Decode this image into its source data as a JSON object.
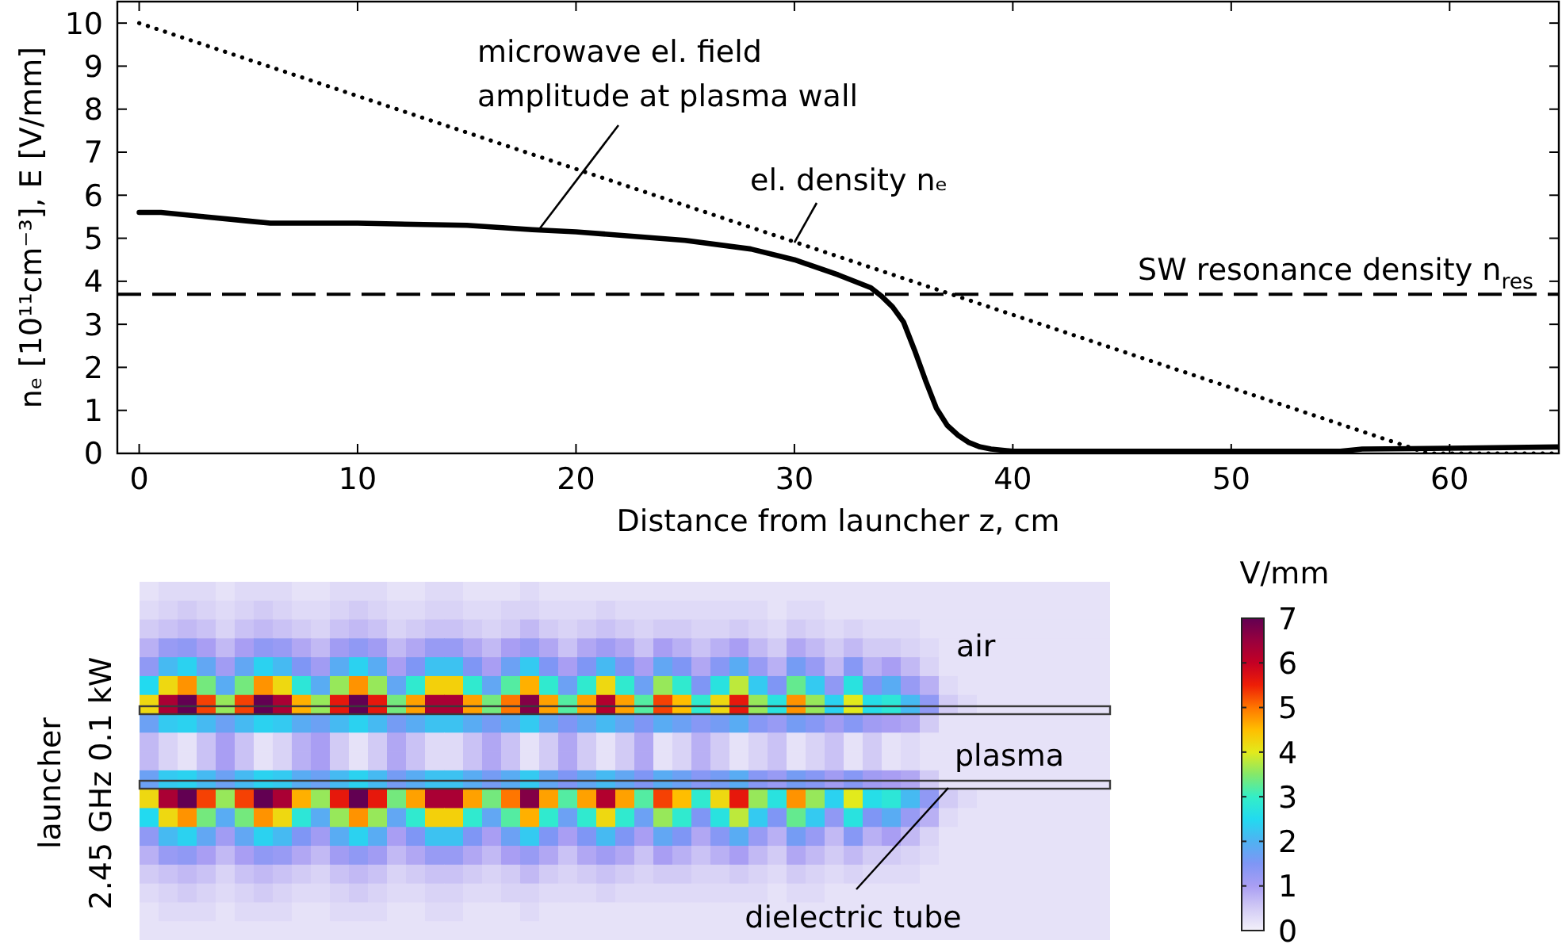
{
  "chart_data": [
    {
      "type": "line",
      "xlabel": "Distance from launcher z, cm",
      "ylabel": "nₑ [10¹¹cm⁻³], E [V/mm]",
      "xlim": [
        -1,
        65
      ],
      "ylim": [
        0,
        10.5
      ],
      "xticks": [
        0,
        10,
        20,
        30,
        40,
        50,
        60
      ],
      "yticks": [
        0,
        1,
        2,
        3,
        4,
        5,
        6,
        7,
        8,
        9,
        10
      ],
      "series": [
        {
          "color": "#000000",
          "line_style": "solid",
          "x": [
            0,
            1,
            3,
            5,
            6,
            10,
            15,
            18,
            20,
            25,
            28,
            30,
            32,
            33.5,
            34,
            34.5,
            35,
            35.5,
            36,
            36.5,
            37,
            37.5,
            38,
            38.5,
            39,
            40,
            45,
            50,
            55,
            56,
            60,
            65
          ],
          "values": [
            5.6,
            5.6,
            5.5,
            5.4,
            5.35,
            5.35,
            5.3,
            5.2,
            5.15,
            4.95,
            4.75,
            4.5,
            4.15,
            3.85,
            3.65,
            3.4,
            3.05,
            2.4,
            1.7,
            1.05,
            0.65,
            0.42,
            0.25,
            0.15,
            0.1,
            0.05,
            0.05,
            0.05,
            0.05,
            0.1,
            0.12,
            0.15
          ]
        },
        {
          "color": "#000000",
          "line_style": "dotted",
          "x": [
            0,
            59,
            65
          ],
          "values": [
            10,
            0,
            0
          ]
        }
      ],
      "ref_lines": [
        {
          "axis": "y",
          "value": 3.7,
          "label": "SW resonance density n$_{res}$",
          "color": "#000000",
          "line_style": "dashed"
        }
      ],
      "annotations": [
        {
          "text": "microwave el. field\namplitude at plasma wall",
          "x": 18.3,
          "y": 5.2
        },
        {
          "text": "el. density nₑ",
          "x": 30,
          "y": 4.9
        }
      ]
    },
    {
      "type": "heatmap",
      "clabel": "V/mm",
      "clim": [
        0,
        7
      ],
      "cticks": [
        0,
        1,
        2,
        3,
        4,
        5,
        6,
        7
      ],
      "categories": [
        null,
        null,
        null,
        null,
        null,
        null,
        null,
        null,
        null,
        null,
        null,
        null,
        null,
        null,
        null,
        null,
        null,
        null,
        null,
        null,
        null,
        null,
        null,
        null,
        null,
        null,
        null,
        null,
        null,
        null,
        null,
        null,
        null,
        null,
        null,
        null,
        null,
        null,
        null,
        null,
        null,
        null,
        null,
        null,
        null,
        null,
        null,
        null,
        null,
        null,
        null
      ],
      "y_categories": [
        null,
        null,
        null,
        null,
        null,
        null,
        null,
        null,
        null,
        null,
        null,
        null,
        null,
        null,
        null,
        null,
        null,
        null,
        null
      ],
      "cells": [
        [
          0.2,
          0.3,
          0.3,
          0.3,
          0.2,
          0.3,
          0.3,
          0.3,
          0.2,
          0.2,
          0.3,
          0.3,
          0.3,
          0.2,
          0.2,
          0.3,
          0.3,
          0.2,
          0.2,
          0.2,
          0.3,
          0.2,
          0.2,
          0.2,
          0.2,
          0.2,
          0.2,
          0.2,
          0.2,
          0.2,
          0.2,
          0.2,
          0.2,
          0.2,
          0.2,
          0.2,
          0.2,
          0.2,
          0.2,
          0.2,
          0.2,
          0.2,
          0.2,
          0.2,
          0.2,
          0.2,
          0.2,
          0.2,
          0.2,
          0.2,
          0.2
        ],
        [
          0.3,
          0.4,
          0.5,
          0.4,
          0.3,
          0.4,
          0.5,
          0.4,
          0.3,
          0.3,
          0.4,
          0.5,
          0.4,
          0.3,
          0.3,
          0.4,
          0.4,
          0.3,
          0.3,
          0.4,
          0.4,
          0.3,
          0.3,
          0.3,
          0.4,
          0.3,
          0.3,
          0.3,
          0.3,
          0.3,
          0.3,
          0.3,
          0.3,
          0.2,
          0.3,
          0.3,
          0.2,
          0.2,
          0.2,
          0.2,
          0.2,
          0.2,
          0.2,
          0.2,
          0.2,
          0.2,
          0.2,
          0.2,
          0.2,
          0.2,
          0.2
        ],
        [
          0.5,
          0.6,
          0.7,
          0.6,
          0.4,
          0.6,
          0.7,
          0.6,
          0.5,
          0.4,
          0.6,
          0.7,
          0.6,
          0.4,
          0.5,
          0.6,
          0.6,
          0.5,
          0.4,
          0.5,
          0.7,
          0.5,
          0.4,
          0.5,
          0.6,
          0.5,
          0.4,
          0.5,
          0.5,
          0.4,
          0.4,
          0.5,
          0.4,
          0.3,
          0.5,
          0.4,
          0.3,
          0.4,
          0.3,
          0.3,
          0.3,
          0.2,
          0.2,
          0.2,
          0.2,
          0.2,
          0.2,
          0.2,
          0.2,
          0.2,
          0.2
        ],
        [
          0.8,
          1.2,
          1.3,
          1.0,
          0.7,
          1.0,
          1.3,
          1.2,
          0.9,
          0.7,
          1.1,
          1.3,
          1.1,
          0.7,
          0.9,
          1.2,
          1.2,
          0.9,
          0.7,
          1.0,
          1.2,
          0.9,
          0.6,
          0.9,
          1.1,
          0.9,
          0.6,
          1.0,
          0.8,
          0.6,
          0.8,
          1.0,
          0.7,
          0.5,
          0.9,
          0.7,
          0.5,
          0.7,
          0.5,
          0.5,
          0.4,
          0.3,
          0.2,
          0.2,
          0.2,
          0.2,
          0.2,
          0.2,
          0.2,
          0.2,
          0.2
        ],
        [
          1.3,
          2.1,
          2.4,
          1.8,
          1.1,
          1.8,
          2.4,
          2.1,
          1.5,
          1.1,
          1.9,
          2.4,
          1.9,
          1.0,
          1.5,
          2.2,
          2.2,
          1.5,
          1.0,
          1.7,
          2.3,
          1.5,
          1.0,
          1.5,
          2.1,
          1.5,
          1.0,
          1.8,
          1.5,
          0.9,
          1.4,
          1.9,
          1.2,
          0.8,
          1.6,
          1.2,
          0.7,
          1.4,
          0.8,
          1.0,
          0.7,
          0.4,
          0.2,
          0.2,
          0.2,
          0.2,
          0.2,
          0.2,
          0.2,
          0.2,
          0.2
        ],
        [
          2.5,
          4.2,
          4.8,
          3.4,
          1.9,
          3.4,
          4.8,
          4.2,
          2.8,
          1.9,
          3.6,
          4.8,
          3.6,
          1.8,
          2.9,
          4.3,
          4.3,
          2.9,
          1.8,
          3.2,
          4.6,
          2.9,
          1.7,
          2.9,
          4.2,
          2.9,
          1.7,
          3.6,
          2.9,
          1.5,
          2.7,
          3.8,
          2.3,
          1.5,
          3.3,
          2.3,
          1.3,
          2.7,
          1.5,
          1.9,
          1.2,
          0.8,
          0.3,
          0.2,
          0.2,
          0.2,
          0.2,
          0.2,
          0.2,
          0.2,
          0.2
        ],
        [
          4.2,
          6.3,
          7.0,
          5.3,
          3.6,
          5.3,
          7.0,
          6.3,
          4.6,
          3.6,
          5.6,
          7.0,
          5.6,
          3.4,
          4.7,
          6.3,
          6.3,
          4.7,
          3.4,
          5.0,
          6.7,
          4.7,
          3.2,
          4.7,
          6.2,
          4.7,
          3.2,
          5.3,
          4.5,
          2.9,
          4.2,
          5.6,
          3.6,
          2.7,
          4.8,
          3.6,
          2.4,
          4.0,
          2.6,
          2.8,
          2.1,
          1.3,
          0.5,
          0.3,
          0.2,
          0.2,
          0.2,
          0.2,
          0.2,
          0.2,
          0.2
        ],
        [
          1.7,
          2.3,
          2.4,
          2.1,
          1.7,
          2.1,
          2.4,
          2.3,
          1.9,
          1.7,
          2.1,
          2.4,
          2.1,
          1.6,
          1.9,
          2.2,
          2.2,
          1.9,
          1.6,
          1.9,
          2.3,
          1.8,
          1.5,
          1.8,
          2.1,
          1.8,
          1.5,
          1.9,
          1.7,
          1.4,
          1.6,
          1.9,
          1.4,
          1.2,
          1.6,
          1.4,
          1.1,
          1.4,
          1.1,
          1.0,
          0.9,
          0.5,
          0.2,
          0.2,
          0.2,
          0.2,
          0.2,
          0.2,
          0.2,
          0.2,
          0.2
        ],
        [
          0.7,
          0.4,
          0.2,
          0.6,
          1.0,
          0.6,
          0.2,
          0.4,
          0.8,
          1.0,
          0.5,
          0.2,
          0.5,
          0.9,
          0.6,
          0.3,
          0.3,
          0.6,
          0.9,
          0.6,
          0.2,
          0.5,
          0.9,
          0.5,
          0.2,
          0.5,
          0.9,
          0.2,
          0.4,
          0.8,
          0.5,
          0.2,
          0.4,
          0.6,
          0.2,
          0.4,
          0.6,
          0.2,
          0.5,
          0.2,
          0.3,
          0.2,
          0.2,
          0.2,
          0.2,
          0.2,
          0.2,
          0.2,
          0.2,
          0.2,
          0.2
        ],
        [
          0.7,
          0.4,
          0.2,
          0.6,
          1.0,
          0.6,
          0.2,
          0.4,
          0.8,
          1.0,
          0.5,
          0.2,
          0.5,
          0.9,
          0.6,
          0.3,
          0.3,
          0.6,
          0.9,
          0.6,
          0.2,
          0.5,
          0.9,
          0.5,
          0.2,
          0.5,
          0.9,
          0.2,
          0.4,
          0.8,
          0.5,
          0.2,
          0.4,
          0.6,
          0.2,
          0.4,
          0.6,
          0.2,
          0.5,
          0.2,
          0.3,
          0.2,
          0.2,
          0.2,
          0.2,
          0.2,
          0.2,
          0.2,
          0.2,
          0.2,
          0.2
        ],
        [
          1.7,
          2.3,
          2.4,
          2.1,
          1.7,
          2.1,
          2.4,
          2.3,
          1.9,
          1.7,
          2.1,
          2.4,
          2.1,
          1.6,
          1.9,
          2.2,
          2.2,
          1.9,
          1.6,
          1.9,
          2.3,
          1.8,
          1.5,
          1.8,
          2.1,
          1.8,
          1.5,
          1.9,
          1.7,
          1.4,
          1.6,
          1.9,
          1.4,
          1.2,
          1.6,
          1.4,
          1.1,
          1.4,
          1.1,
          1.0,
          0.9,
          0.5,
          0.2,
          0.2,
          0.2,
          0.2,
          0.2,
          0.2,
          0.2,
          0.2,
          0.2
        ],
        [
          4.2,
          6.3,
          7.0,
          5.3,
          3.6,
          5.3,
          7.0,
          6.3,
          4.6,
          3.6,
          5.6,
          7.0,
          5.6,
          3.4,
          4.7,
          6.3,
          6.3,
          4.7,
          3.4,
          5.0,
          6.7,
          4.7,
          3.2,
          4.7,
          6.2,
          4.7,
          3.2,
          5.3,
          4.5,
          2.9,
          4.2,
          5.6,
          3.6,
          2.7,
          4.8,
          3.6,
          2.4,
          4.0,
          2.6,
          2.8,
          2.1,
          1.3,
          0.5,
          0.3,
          0.2,
          0.2,
          0.2,
          0.2,
          0.2,
          0.2,
          0.2
        ],
        [
          2.5,
          4.2,
          4.8,
          3.4,
          1.9,
          3.4,
          4.8,
          4.2,
          2.8,
          1.9,
          3.6,
          4.8,
          3.6,
          1.8,
          2.9,
          4.3,
          4.3,
          2.9,
          1.8,
          3.2,
          4.6,
          2.9,
          1.7,
          2.9,
          4.2,
          2.9,
          1.7,
          3.6,
          2.9,
          1.5,
          2.7,
          3.8,
          2.3,
          1.5,
          3.3,
          2.3,
          1.3,
          2.7,
          1.5,
          1.9,
          1.2,
          0.8,
          0.3,
          0.2,
          0.2,
          0.2,
          0.2,
          0.2,
          0.2,
          0.2,
          0.2
        ],
        [
          1.3,
          2.1,
          2.4,
          1.8,
          1.1,
          1.8,
          2.4,
          2.1,
          1.5,
          1.1,
          1.9,
          2.4,
          1.9,
          1.0,
          1.5,
          2.2,
          2.2,
          1.5,
          1.0,
          1.7,
          2.3,
          1.5,
          1.0,
          1.5,
          2.1,
          1.5,
          1.0,
          1.8,
          1.5,
          0.9,
          1.4,
          1.9,
          1.2,
          0.8,
          1.6,
          1.2,
          0.7,
          1.4,
          0.8,
          1.0,
          0.7,
          0.4,
          0.2,
          0.2,
          0.2,
          0.2,
          0.2,
          0.2,
          0.2,
          0.2,
          0.2
        ],
        [
          0.8,
          1.2,
          1.3,
          1.0,
          0.7,
          1.0,
          1.3,
          1.2,
          0.9,
          0.7,
          1.1,
          1.3,
          1.1,
          0.7,
          0.9,
          1.2,
          1.2,
          0.9,
          0.7,
          1.0,
          1.2,
          0.9,
          0.6,
          0.9,
          1.1,
          0.9,
          0.6,
          1.0,
          0.8,
          0.6,
          0.8,
          1.0,
          0.7,
          0.5,
          0.9,
          0.7,
          0.5,
          0.7,
          0.5,
          0.5,
          0.4,
          0.3,
          0.2,
          0.2,
          0.2,
          0.2,
          0.2,
          0.2,
          0.2,
          0.2,
          0.2
        ],
        [
          0.5,
          0.6,
          0.7,
          0.6,
          0.4,
          0.6,
          0.7,
          0.6,
          0.5,
          0.4,
          0.6,
          0.7,
          0.6,
          0.4,
          0.5,
          0.6,
          0.6,
          0.5,
          0.4,
          0.5,
          0.7,
          0.5,
          0.4,
          0.5,
          0.6,
          0.5,
          0.4,
          0.5,
          0.5,
          0.4,
          0.4,
          0.5,
          0.4,
          0.3,
          0.5,
          0.4,
          0.3,
          0.4,
          0.3,
          0.3,
          0.3,
          0.2,
          0.2,
          0.2,
          0.2,
          0.2,
          0.2,
          0.2,
          0.2,
          0.2,
          0.2
        ],
        [
          0.3,
          0.4,
          0.5,
          0.4,
          0.3,
          0.4,
          0.5,
          0.4,
          0.3,
          0.3,
          0.4,
          0.5,
          0.4,
          0.3,
          0.3,
          0.4,
          0.4,
          0.3,
          0.3,
          0.4,
          0.4,
          0.3,
          0.3,
          0.3,
          0.4,
          0.3,
          0.3,
          0.3,
          0.3,
          0.3,
          0.3,
          0.3,
          0.3,
          0.2,
          0.3,
          0.3,
          0.2,
          0.2,
          0.2,
          0.2,
          0.2,
          0.2,
          0.2,
          0.2,
          0.2,
          0.2,
          0.2,
          0.2,
          0.2,
          0.2,
          0.2
        ],
        [
          0.2,
          0.3,
          0.3,
          0.3,
          0.2,
          0.3,
          0.3,
          0.3,
          0.2,
          0.2,
          0.3,
          0.3,
          0.3,
          0.2,
          0.2,
          0.3,
          0.3,
          0.2,
          0.2,
          0.2,
          0.3,
          0.2,
          0.2,
          0.2,
          0.2,
          0.2,
          0.2,
          0.2,
          0.2,
          0.2,
          0.2,
          0.2,
          0.2,
          0.2,
          0.2,
          0.2,
          0.2,
          0.2,
          0.2,
          0.2,
          0.2,
          0.2,
          0.2,
          0.2,
          0.2,
          0.2,
          0.2,
          0.2,
          0.2,
          0.2,
          0.2
        ],
        [
          0.2,
          0.2,
          0.2,
          0.2,
          0.2,
          0.2,
          0.2,
          0.2,
          0.2,
          0.2,
          0.2,
          0.2,
          0.2,
          0.2,
          0.2,
          0.2,
          0.2,
          0.2,
          0.2,
          0.2,
          0.2,
          0.2,
          0.2,
          0.2,
          0.2,
          0.2,
          0.2,
          0.2,
          0.2,
          0.2,
          0.2,
          0.2,
          0.2,
          0.2,
          0.2,
          0.2,
          0.2,
          0.2,
          0.2,
          0.2,
          0.2,
          0.2,
          0.2,
          0.2,
          0.2,
          0.2,
          0.2,
          0.2,
          0.2,
          0.2,
          0.2
        ]
      ],
      "annotations": [
        "launcher\n2.45 GHz 0.1 kW",
        "air",
        "plasma",
        "dielectric tube"
      ]
    }
  ]
}
